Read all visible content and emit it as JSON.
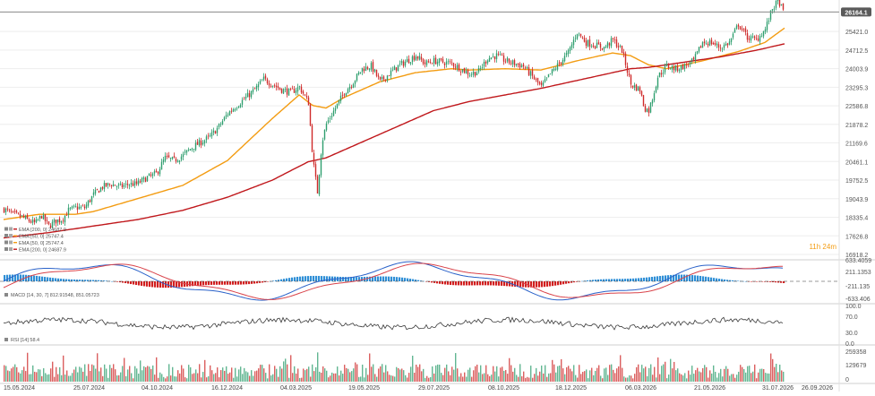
{
  "colors": {
    "up": "#2e9e6e",
    "down": "#cf2a2a",
    "ema50": "#f39c12",
    "ema200": "#c0181c",
    "macd_line": "#2a62c9",
    "signal_line": "#d9434a",
    "hist_up": "#2f8fd6",
    "hist_down": "#d21f1f",
    "rsi_line": "#3a3a3a",
    "grid": "#eeeeee",
    "price_badge": "#5a5a5a",
    "timer": "#f39c12"
  },
  "price_axis": {
    "ticks": [
      "25421.0",
      "24712.5",
      "24003.9",
      "23295.3",
      "22586.8",
      "21878.2",
      "21169.6",
      "20461.1",
      "19752.5",
      "19043.9",
      "18335.4",
      "17626.8",
      "16918.2"
    ],
    "tick_values": [
      25421.0,
      24712.5,
      24003.9,
      23295.3,
      22586.8,
      21878.2,
      21169.6,
      20461.1,
      19752.5,
      19043.9,
      18335.4,
      17626.8,
      16918.2
    ],
    "range": [
      16918.2,
      26620
    ],
    "last_price_label": "26164.1",
    "last_price": 26164.1,
    "timer_label": "11h 24m"
  },
  "legend": [
    {
      "text": "EMA [200, 0] 24687.9"
    },
    {
      "text": "EMA [50, 0] 25747.4"
    },
    {
      "text": "EMA [50, 0] 25747.4"
    },
    {
      "text": "EMA [200, 0] 24687.9"
    }
  ],
  "macd": {
    "label": "MACD [14, 30, 7] 812.91548, 851.05723",
    "ticks": [
      "633.4059",
      "211.1353",
      "-211.135",
      "-633.406"
    ],
    "tick_values": [
      633.4059,
      211.1353,
      -211.135,
      -633.406
    ]
  },
  "rsi": {
    "label": "RSI [14] 58.4",
    "ticks": [
      "100.0",
      "70.0",
      "30.0",
      "0.0"
    ],
    "tick_values": [
      100,
      70,
      30,
      0
    ]
  },
  "volume": {
    "label": "Volume",
    "ticks": [
      "259358",
      "129679",
      "0"
    ],
    "tick_values": [
      259358,
      129679,
      0
    ]
  },
  "x_axis": {
    "labels": [
      "15.05.2024",
      "25.07.2024",
      "04.10.2024",
      "16.12.2024",
      "04.03.2025",
      "19.05.2025",
      "29.07.2025",
      "08.10.2025",
      "18.12.2025",
      "06.03.2026",
      "21.05.2026",
      "31.07.2026",
      "26.09.2026"
    ]
  },
  "chart_data": {
    "type": "candlestick",
    "x_labels": [
      "15.05.2024",
      "25.07.2024",
      "04.10.2024",
      "16.12.2024",
      "04.03.2025",
      "19.05.2025",
      "29.07.2025",
      "08.10.2025",
      "18.12.2025",
      "06.03.2026",
      "21.05.2026",
      "31.07.2026",
      "26.09.2026"
    ],
    "close_anchors": [
      [
        0,
        18650
      ],
      [
        10,
        18450
      ],
      [
        20,
        18350
      ],
      [
        28,
        18200
      ],
      [
        35,
        18100
      ],
      [
        42,
        18400
      ],
      [
        50,
        18000
      ],
      [
        58,
        18200
      ],
      [
        65,
        18250
      ],
      [
        72,
        18600
      ],
      [
        80,
        18700
      ],
      [
        90,
        18700
      ],
      [
        100,
        19200
      ],
      [
        110,
        19500
      ],
      [
        120,
        19600
      ],
      [
        130,
        19500
      ],
      [
        140,
        19600
      ],
      [
        148,
        19600
      ],
      [
        160,
        19850
      ],
      [
        170,
        20000
      ],
      [
        180,
        20600
      ],
      [
        190,
        20500
      ],
      [
        200,
        20700
      ],
      [
        210,
        21000
      ],
      [
        220,
        21200
      ],
      [
        230,
        21400
      ],
      [
        240,
        21800
      ],
      [
        250,
        22300
      ],
      [
        260,
        22600
      ],
      [
        270,
        22900
      ],
      [
        280,
        23200
      ],
      [
        290,
        23600
      ],
      [
        300,
        23400
      ],
      [
        310,
        23200
      ],
      [
        320,
        23100
      ],
      [
        330,
        23300
      ],
      [
        340,
        22700
      ],
      [
        345,
        20500
      ],
      [
        350,
        19300
      ],
      [
        355,
        21200
      ],
      [
        360,
        21900
      ],
      [
        370,
        22500
      ],
      [
        380,
        23100
      ],
      [
        390,
        23500
      ],
      [
        400,
        24000
      ],
      [
        410,
        24100
      ],
      [
        420,
        23500
      ],
      [
        430,
        23800
      ],
      [
        440,
        24100
      ],
      [
        450,
        24300
      ],
      [
        460,
        24500
      ],
      [
        470,
        24200
      ],
      [
        480,
        24300
      ],
      [
        490,
        24250
      ],
      [
        500,
        24200
      ],
      [
        510,
        24000
      ],
      [
        520,
        23800
      ],
      [
        530,
        23900
      ],
      [
        540,
        24400
      ],
      [
        550,
        24500
      ],
      [
        560,
        24300
      ],
      [
        570,
        24200
      ],
      [
        580,
        24100
      ],
      [
        590,
        23700
      ],
      [
        600,
        23300
      ],
      [
        610,
        23800
      ],
      [
        620,
        24200
      ],
      [
        630,
        24600
      ],
      [
        640,
        25400
      ],
      [
        650,
        25000
      ],
      [
        660,
        24900
      ],
      [
        670,
        24800
      ],
      [
        680,
        25100
      ],
      [
        690,
        24700
      ],
      [
        700,
        23400
      ],
      [
        710,
        23200
      ],
      [
        715,
        22500
      ],
      [
        720,
        22400
      ],
      [
        725,
        23000
      ],
      [
        730,
        23700
      ],
      [
        740,
        24100
      ],
      [
        750,
        24000
      ],
      [
        760,
        24100
      ],
      [
        770,
        24300
      ],
      [
        780,
        25000
      ],
      [
        790,
        25000
      ],
      [
        800,
        24800
      ],
      [
        810,
        25000
      ],
      [
        820,
        25700
      ],
      [
        830,
        25200
      ],
      [
        840,
        25100
      ],
      [
        850,
        25500
      ],
      [
        858,
        26300
      ],
      [
        865,
        26600
      ],
      [
        870,
        26164
      ]
    ],
    "series": [
      {
        "name": "EMA [50, 0] 25747.4",
        "anchors": [
          [
            0,
            18250
          ],
          [
            40,
            18450
          ],
          [
            80,
            18450
          ],
          [
            100,
            18550
          ],
          [
            150,
            19050
          ],
          [
            200,
            19550
          ],
          [
            250,
            20500
          ],
          [
            300,
            22100
          ],
          [
            330,
            23000
          ],
          [
            345,
            22600
          ],
          [
            360,
            22500
          ],
          [
            380,
            22900
          ],
          [
            420,
            23500
          ],
          [
            460,
            23850
          ],
          [
            500,
            24000
          ],
          [
            520,
            23950
          ],
          [
            560,
            24000
          ],
          [
            600,
            23950
          ],
          [
            640,
            24300
          ],
          [
            680,
            24600
          ],
          [
            700,
            24500
          ],
          [
            720,
            24150
          ],
          [
            740,
            24000
          ],
          [
            780,
            24300
          ],
          [
            820,
            24650
          ],
          [
            850,
            25000
          ],
          [
            872,
            25550
          ]
        ]
      },
      {
        "name": "EMA [200, 0] 24687.9",
        "anchors": [
          [
            0,
            17550
          ],
          [
            50,
            17750
          ],
          [
            100,
            18000
          ],
          [
            150,
            18250
          ],
          [
            200,
            18600
          ],
          [
            250,
            19100
          ],
          [
            300,
            19750
          ],
          [
            340,
            20450
          ],
          [
            360,
            20600
          ],
          [
            400,
            21200
          ],
          [
            440,
            21800
          ],
          [
            480,
            22400
          ],
          [
            520,
            22750
          ],
          [
            560,
            23000
          ],
          [
            600,
            23250
          ],
          [
            640,
            23550
          ],
          [
            680,
            23850
          ],
          [
            700,
            24000
          ],
          [
            720,
            24050
          ],
          [
            760,
            24250
          ],
          [
            800,
            24450
          ],
          [
            840,
            24700
          ],
          [
            872,
            24950
          ]
        ]
      }
    ]
  }
}
